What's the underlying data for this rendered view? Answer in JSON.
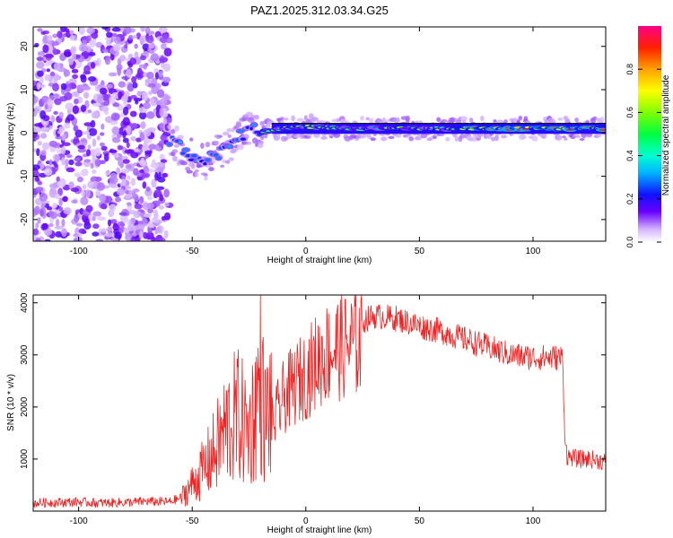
{
  "chart_data": [
    {
      "type": "heatmap",
      "title": "PAZ1.2025.312.03.34.G25",
      "xlabel": "Height of straight line (km)",
      "ylabel": "Frequency (Hz)",
      "xlim": [
        -120,
        132
      ],
      "ylim": [
        -25,
        24.5
      ],
      "xticks": [
        -100,
        -50,
        0,
        50,
        100
      ],
      "yticks": [
        -20,
        -10,
        0,
        10,
        20
      ],
      "colorbar": {
        "label": "Normalized spectral amplitude",
        "range": [
          0,
          1
        ],
        "ticks": [
          0.0,
          0.2,
          0.4,
          0.6,
          0.8
        ],
        "tick_labels": [
          "0.0",
          "0.2",
          "0.4",
          "0.6",
          "0.8"
        ]
      },
      "regions": [
        {
          "name": "noise",
          "x": [
            -120,
            -60
          ],
          "y": [
            -25,
            24.5
          ],
          "amplitude": 0.12
        },
        {
          "name": "signal-trace",
          "x": [
            -60,
            132
          ],
          "amplitude_range": [
            0.2,
            0.95
          ]
        }
      ],
      "trace": [
        {
          "x": -60,
          "y": -1.5
        },
        {
          "x": -55,
          "y": -3.5
        },
        {
          "x": -50,
          "y": -5.5
        },
        {
          "x": -45,
          "y": -7
        },
        {
          "x": -40,
          "y": -5
        },
        {
          "x": -35,
          "y": -3
        },
        {
          "x": -30,
          "y": -1
        },
        {
          "x": -25,
          "y": 1
        },
        {
          "x": -20,
          "y": 0
        },
        {
          "x": -10,
          "y": 1
        },
        {
          "x": 0,
          "y": 1.5
        },
        {
          "x": 20,
          "y": 1
        },
        {
          "x": 50,
          "y": 1
        },
        {
          "x": 100,
          "y": 1
        },
        {
          "x": 132,
          "y": 1
        }
      ]
    },
    {
      "type": "line",
      "xlabel": "Height of straight line (km)",
      "ylabel": "SNR (10 * v/v)",
      "xlim": [
        -120,
        132
      ],
      "ylim": [
        0,
        4150
      ],
      "xticks": [
        -100,
        -50,
        0,
        50,
        100
      ],
      "yticks": [
        1000,
        2000,
        3000,
        4000
      ],
      "color": "#ee2222",
      "series": [
        {
          "name": "SNR",
          "x": [
            -120,
            -110,
            -100,
            -90,
            -80,
            -70,
            -60,
            -55,
            -50,
            -45,
            -40,
            -35,
            -30,
            -25,
            -22,
            -20,
            -18,
            -15,
            -10,
            -5,
            0,
            5,
            10,
            15,
            20,
            25,
            30,
            40,
            50,
            55,
            60,
            70,
            80,
            90,
            100,
            110,
            113,
            114,
            115,
            120,
            125,
            132
          ],
          "values": [
            120,
            130,
            140,
            120,
            130,
            150,
            140,
            220,
            450,
            700,
            1000,
            1400,
            1600,
            1300,
            1800,
            2200,
            1500,
            1800,
            2400,
            2700,
            2900,
            3200,
            3400,
            3500,
            3550,
            3650,
            3750,
            3700,
            3550,
            3500,
            3450,
            3300,
            3150,
            3000,
            2950,
            2950,
            2950,
            1500,
            1050,
            1000,
            1000,
            950
          ]
        }
      ]
    }
  ]
}
